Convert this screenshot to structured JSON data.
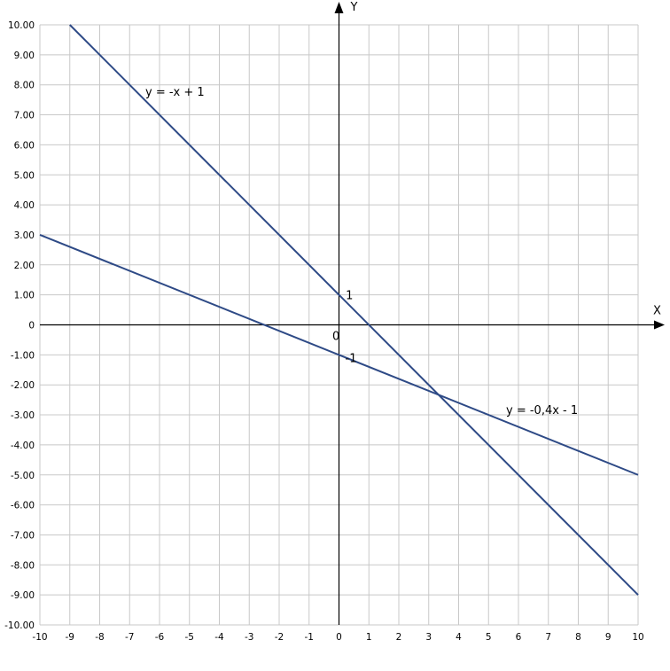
{
  "chart_data": {
    "type": "line",
    "title": "",
    "xlabel": "X",
    "ylabel": "Y",
    "xlim": [
      -10,
      10
    ],
    "ylim": [
      -10,
      10
    ],
    "grid": true,
    "x_ticks": [
      "-10",
      "-9",
      "-8",
      "-7",
      "-6",
      "-5",
      "-4",
      "-3",
      "-2",
      "-1",
      "0",
      "1",
      "2",
      "3",
      "4",
      "5",
      "6",
      "7",
      "8",
      "9",
      "10"
    ],
    "y_ticks": [
      "10.00",
      "9.00",
      "8.00",
      "7.00",
      "6.00",
      "5.00",
      "4.00",
      "3.00",
      "2.00",
      "1.00",
      "0",
      "-1.00",
      "-2.00",
      "-3.00",
      "-4.00",
      "-5.00",
      "-6.00",
      "-7.00",
      "-8.00",
      "-9.00",
      "-10.00"
    ],
    "series": [
      {
        "name": "y = -x + 1",
        "x": [
          -9,
          10
        ],
        "y": [
          10,
          -9
        ],
        "color": "#2e4a86"
      },
      {
        "name": "y = -0,4x - 1",
        "x": [
          -10,
          10
        ],
        "y": [
          3,
          -5
        ],
        "color": "#2e4a86"
      }
    ],
    "annotations": [
      {
        "text": "0",
        "x": -0.1,
        "y": -0.35
      },
      {
        "text": "1",
        "x": 0.35,
        "y": 1.0
      },
      {
        "text": "-1",
        "x": 0.4,
        "y": -1.1
      }
    ]
  }
}
